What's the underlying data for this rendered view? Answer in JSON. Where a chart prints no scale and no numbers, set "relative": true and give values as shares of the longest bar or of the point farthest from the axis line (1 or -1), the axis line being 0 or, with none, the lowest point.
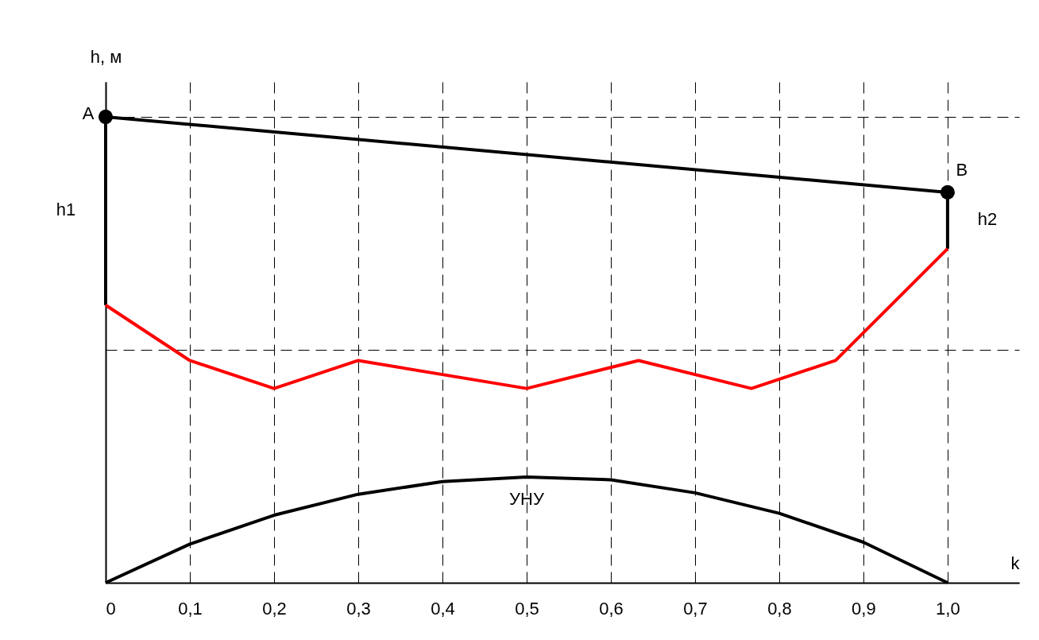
{
  "chart_data": {
    "type": "line",
    "relative": true,
    "xlabel": "k",
    "ylabel": "h, м",
    "xlim": [
      0,
      1.085
    ],
    "xticks": [
      0,
      {
        "value": 0.1,
        "label": "0,1"
      },
      {
        "value": 0.2,
        "label": "0,2"
      },
      {
        "value": 0.3,
        "label": "0,3"
      },
      {
        "value": 0.4,
        "label": "0,4"
      },
      {
        "value": 0.5,
        "label": "0,5"
      },
      {
        "value": 0.6,
        "label": "0,6"
      },
      {
        "value": 0.7,
        "label": "0,7"
      },
      {
        "value": 0.8,
        "label": "0,8"
      },
      {
        "value": 0.9,
        "label": "0,9"
      },
      {
        "value": 1.0,
        "label": "1,0"
      }
    ],
    "grid": true,
    "line_style": "solid",
    "series": [
      {
        "color": "#000000",
        "x": [
          0,
          0,
          1,
          1
        ],
        "values": [
          0.596,
          1,
          0.838,
          0.717
        ]
      },
      {
        "color": "#ff0000",
        "x": [
          0,
          0.1,
          0.2,
          0.3,
          0.5,
          0.633,
          0.767,
          0.867,
          1.0
        ],
        "values": [
          0.596,
          0.477,
          0.417,
          0.477,
          0.417,
          0.477,
          0.417,
          0.477,
          0.717
        ]
      },
      {
        "color": "#000000",
        "x": [
          0,
          0.1,
          0.2,
          0.3,
          0.4,
          0.5,
          0.6,
          0.7,
          0.8,
          0.9,
          1.0
        ],
        "values": [
          0,
          0.083,
          0.145,
          0.19,
          0.217,
          0.227,
          0.221,
          0.193,
          0.149,
          0.087,
          0
        ]
      },
      {
        "type": "scatter",
        "color": "#000000",
        "marker": "circle",
        "x": [
          0,
          1
        ],
        "values": [
          1,
          0.838
        ]
      }
    ],
    "annotations": [
      {
        "text": "A",
        "x": 0,
        "y": 1
      },
      {
        "text": "B",
        "x": 1,
        "y": 0.838
      },
      {
        "text": "h1",
        "x": 0,
        "y": 0.8
      },
      {
        "text": "h2",
        "x": 1,
        "y": 0.78
      },
      {
        "text": "УНУ",
        "x": 0.5,
        "y": 0.227
      }
    ]
  }
}
